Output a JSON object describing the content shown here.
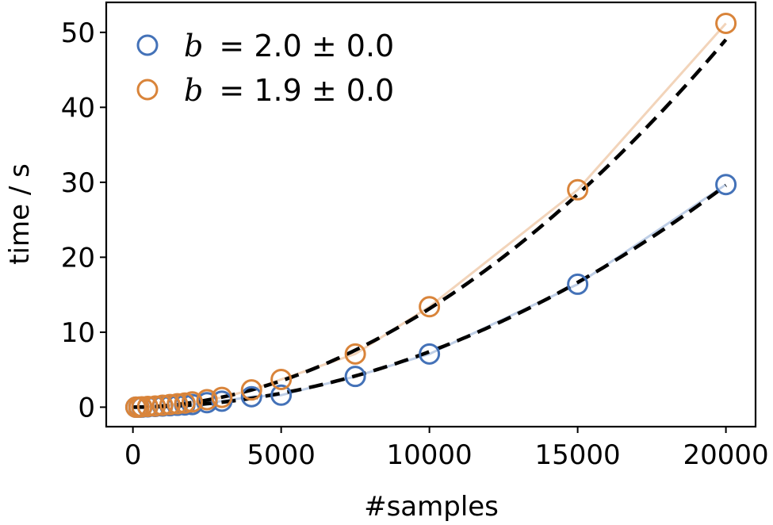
{
  "chart_data": {
    "type": "scatter",
    "title": "",
    "xlabel": "#samples",
    "ylabel": "time / s",
    "xlim": [
      -900,
      21000
    ],
    "ylim": [
      -2.6,
      54
    ],
    "xticks": [
      0,
      5000,
      10000,
      15000,
      20000
    ],
    "yticks": [
      0,
      10,
      20,
      30,
      40,
      50
    ],
    "grid": false,
    "legend_position": "top-left",
    "series": [
      {
        "legend_prefix": "b",
        "legend_value": "= 2.0 ± 0.0",
        "color": "#4472b8",
        "marker": "hollow-circle",
        "fit": "dashed-black",
        "points": [
          [
            100,
            0.0
          ],
          [
            200,
            0.0
          ],
          [
            300,
            0.0
          ],
          [
            500,
            0.05
          ],
          [
            750,
            0.1
          ],
          [
            1000,
            0.15
          ],
          [
            1250,
            0.2
          ],
          [
            1500,
            0.25
          ],
          [
            1750,
            0.3
          ],
          [
            2000,
            0.35
          ],
          [
            2500,
            0.6
          ],
          [
            3000,
            0.8
          ],
          [
            4000,
            1.4
          ],
          [
            5000,
            1.6
          ],
          [
            7500,
            4.1
          ],
          [
            10000,
            7.1
          ],
          [
            15000,
            16.4
          ],
          [
            20000,
            29.7
          ]
        ],
        "fit_coefficient": 7.4e-08,
        "fit_exponent": 2.0
      },
      {
        "legend_prefix": "b",
        "legend_value": "= 1.9 ± 0.0",
        "color": "#d9843a",
        "marker": "hollow-circle",
        "fit": "dashed-black",
        "points": [
          [
            100,
            0.0
          ],
          [
            200,
            0.0
          ],
          [
            300,
            0.05
          ],
          [
            500,
            0.1
          ],
          [
            750,
            0.15
          ],
          [
            1000,
            0.25
          ],
          [
            1250,
            0.35
          ],
          [
            1500,
            0.45
          ],
          [
            1750,
            0.55
          ],
          [
            2000,
            0.7
          ],
          [
            2500,
            1.0
          ],
          [
            3000,
            1.3
          ],
          [
            4000,
            2.3
          ],
          [
            5000,
            3.7
          ],
          [
            7500,
            7.1
          ],
          [
            10000,
            13.4
          ],
          [
            15000,
            29.0
          ],
          [
            20000,
            51.2
          ]
        ],
        "fit_coefficient": 3.3e-07,
        "fit_exponent": 1.9
      }
    ]
  }
}
